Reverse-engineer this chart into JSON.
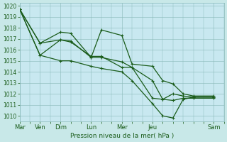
{
  "fig_bg": "#c8e8e8",
  "plot_bg": "#c8e8f0",
  "grid_color": "#88b8b8",
  "line_color": "#1a5c1a",
  "tick_color": "#1a5c1a",
  "xlabel_text": "Pression niveau de la mer( hPa )",
  "ylim_min": 1009.5,
  "ylim_max": 1020.25,
  "yticks": [
    1010,
    1011,
    1012,
    1013,
    1014,
    1015,
    1016,
    1017,
    1018,
    1019,
    1020
  ],
  "day_labels": [
    "Mar",
    "Ven",
    "Dim",
    "Lun",
    "Mer",
    "Jeu",
    "Sam"
  ],
  "day_x": [
    0,
    2,
    4,
    7,
    10,
    13,
    19
  ],
  "x_max": 20,
  "series": [
    {
      "x": [
        0,
        2,
        4,
        5,
        7,
        8,
        10,
        11,
        13,
        14,
        15,
        16,
        17,
        19
      ],
      "y": [
        1019.7,
        1016.6,
        1017.6,
        1017.5,
        1015.3,
        1017.8,
        1017.3,
        1014.7,
        1014.5,
        1013.2,
        1012.9,
        1012.0,
        1011.8,
        1011.8
      ]
    },
    {
      "x": [
        0,
        2,
        4,
        5,
        7,
        8,
        10,
        11,
        13,
        14,
        15,
        16,
        17,
        19
      ],
      "y": [
        1019.7,
        1015.5,
        1015.0,
        1015.0,
        1014.5,
        1014.3,
        1014.0,
        1013.2,
        1011.1,
        1010.0,
        1009.8,
        1011.5,
        1011.7,
        1011.7
      ]
    },
    {
      "x": [
        0,
        2,
        4,
        5,
        7,
        8,
        10,
        11,
        13,
        14,
        15,
        16,
        17,
        19
      ],
      "y": [
        1019.7,
        1016.6,
        1016.9,
        1016.8,
        1015.3,
        1015.3,
        1014.9,
        1014.4,
        1011.6,
        1011.5,
        1012.0,
        1011.8,
        1011.7,
        1011.7
      ]
    },
    {
      "x": [
        0,
        2,
        4,
        5,
        7,
        8,
        10,
        11,
        13,
        14,
        15,
        16,
        17,
        19
      ],
      "y": [
        1019.7,
        1015.5,
        1016.9,
        1016.7,
        1015.4,
        1015.4,
        1014.4,
        1014.4,
        1013.2,
        1011.5,
        1011.4,
        1011.6,
        1011.6,
        1011.6
      ]
    }
  ],
  "linewidth": 0.9,
  "markersize": 3.5,
  "marker": "+"
}
